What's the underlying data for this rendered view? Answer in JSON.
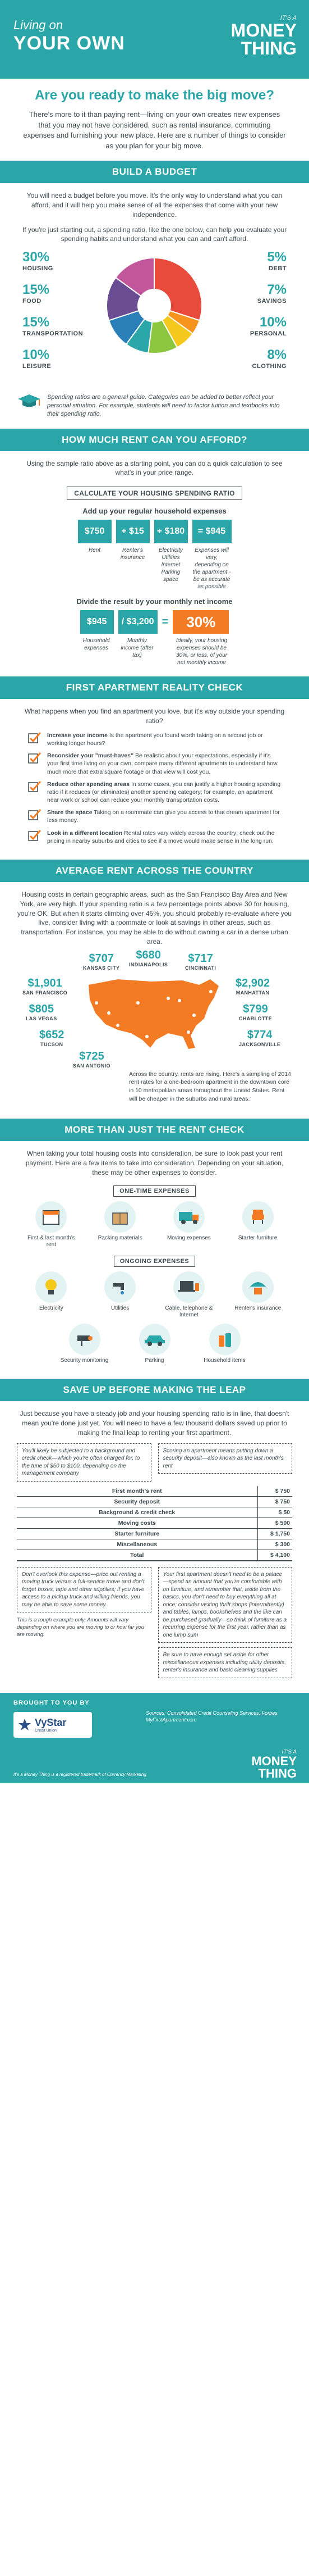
{
  "header": {
    "living_on": "Living on",
    "your_own": "YOUR OWN",
    "tagline": "IT'S A",
    "brand_line1": "MONEY",
    "brand_line2": "THING"
  },
  "intro": {
    "title": "Are you ready to make the big move?",
    "body": "There's more to it than paying rent—living on your own creates new expenses that you may not have considered, such as rental insurance, commuting expenses and furnishing your new place. Here are a number of things to consider as you plan for your big move."
  },
  "budget": {
    "heading": "BUILD A BUDGET",
    "lead1": "You will need a budget before you move. It's the only way to understand what you can afford, and it will help you make sense of all the expenses that come with your new independence.",
    "lead2": "If you're just starting out, a spending ratio, like the one below, can help you evaluate your spending habits and understand what you can and can't afford.",
    "categories": [
      {
        "pct": "30%",
        "name": "HOUSING"
      },
      {
        "pct": "15%",
        "name": "FOOD"
      },
      {
        "pct": "15%",
        "name": "TRANSPORTATION"
      },
      {
        "pct": "10%",
        "name": "LEISURE"
      },
      {
        "pct": "5%",
        "name": "DEBT"
      },
      {
        "pct": "7%",
        "name": "SAVINGS"
      },
      {
        "pct": "10%",
        "name": "PERSONAL"
      },
      {
        "pct": "8%",
        "name": "CLOTHING"
      }
    ],
    "note": "Spending ratios are a general guide. Categories can be added to better reflect your personal situation. For example, students will need to factor tuition and textbooks into their spending ratio."
  },
  "chart_data": {
    "type": "pie",
    "categories": [
      "HOUSING",
      "DEBT",
      "SAVINGS",
      "PERSONAL",
      "CLOTHING",
      "LEISURE",
      "TRANSPORTATION",
      "FOOD"
    ],
    "values": [
      30,
      5,
      7,
      10,
      8,
      10,
      15,
      15
    ],
    "colors": [
      "#e84b3c",
      "#f7941d",
      "#f4c81d",
      "#8cc63f",
      "#2aa6a8",
      "#2a7fb8",
      "#6a4c93",
      "#c2569a"
    ]
  },
  "rent": {
    "heading": "HOW MUCH RENT CAN YOU AFFORD?",
    "lead": "Using the sample ratio above as a starting point, you can do a quick calculation to see what's in your price range.",
    "calc_title": "CALCULATE YOUR HOUSING SPENDING RATIO",
    "add_title": "Add up your regular household expenses",
    "add_values": [
      "$750",
      "+ $15",
      "+ $180",
      "= $945"
    ],
    "add_labels": [
      "Rent",
      "Renter's insurance",
      "Electricity Utilities Internet Parking space",
      "Expenses will vary, depending on the apartment - be as accurate as possible"
    ],
    "div_title": "Divide the result by your monthly net income",
    "div_values": [
      "$945",
      "/ $3,200",
      "=",
      "30%"
    ],
    "div_labels": [
      "Household expenses",
      "Monthly income (after tax)",
      "Ideally, your housing expenses should be 30%, or less, of your net monthly income"
    ]
  },
  "reality": {
    "heading": "FIRST APARTMENT REALITY CHECK",
    "lead": "What happens when you find an apartment you love, but it's way outside your spending ratio?",
    "items": [
      {
        "bold": "Increase your income",
        "text": " Is the apartment you found worth taking on a second job or working longer hours?"
      },
      {
        "bold": "Reconsider your \"must-haves\"",
        "text": " Be realistic about your expectations, especially if it's your first time living on your own; compare many different apartments to understand how much more that extra square footage or that view will cost you."
      },
      {
        "bold": "Reduce other spending areas",
        "text": " In some cases, you can justify a higher housing spending ratio if it reduces (or eliminates) another spending category; for example, an apartment near work or school can reduce your monthly transportation costs."
      },
      {
        "bold": "Share the space",
        "text": " Taking on a roommate can give you access to that dream apartment for less money."
      },
      {
        "bold": "Look in a different location",
        "text": " Rental rates vary widely across the country; check out the pricing in nearby suburbs and cities to see if a move would make sense in the long run."
      }
    ]
  },
  "average": {
    "heading": "AVERAGE RENT ACROSS THE COUNTRY",
    "lead": "Housing costs in certain geographic areas, such as the San Francisco Bay Area and New York, are very high. If your spending ratio is a few percentage points above 30 for housing, you're OK. But when it starts climbing over 45%, you should probably re-evaluate where you live, consider living with a roommate or look at savings in other areas, such as transportation. For instance, you may be able to do without owning a car in a dense urban area.",
    "cities": [
      {
        "price": "$707",
        "name": "KANSAS CITY"
      },
      {
        "price": "$680",
        "name": "INDIANAPOLIS"
      },
      {
        "price": "$717",
        "name": "CINCINNATI"
      },
      {
        "price": "$1,901",
        "name": "SAN FRANCISCO"
      },
      {
        "price": "$2,902",
        "name": "MANHATTAN"
      },
      {
        "price": "$805",
        "name": "LAS VEGAS"
      },
      {
        "price": "$799",
        "name": "CHARLOTTE"
      },
      {
        "price": "$652",
        "name": "TUCSON"
      },
      {
        "price": "$774",
        "name": "JACKSONVILLE"
      },
      {
        "price": "$725",
        "name": "SAN ANTONIO"
      }
    ],
    "map_note": "Across the country, rents are rising. Here's a sampling of 2014 rent rates for a one-bedroom apartment in the downtown core in 10 metropolitan areas throughout the United States. Rent will be cheaper in the suburbs and rural areas."
  },
  "more": {
    "heading": "MORE THAN JUST THE RENT CHECK",
    "lead": "When taking your total housing costs into consideration, be sure to look past your rent payment. Here are a few items to take into consideration. Depending on your situation, these may be other expenses to consider.",
    "one_time_title": "ONE-TIME EXPENSES",
    "one_time": [
      "First & last month's rent",
      "Packing materials",
      "Moving expenses",
      "Starter furniture"
    ],
    "ongoing_title": "ONGOING EXPENSES",
    "ongoing1": [
      "Electricity",
      "Utilities",
      "Cable, telephone & Internet",
      "Renter's insurance"
    ],
    "ongoing2": [
      "Security monitoring",
      "Parking",
      "Household items"
    ]
  },
  "save": {
    "heading": "SAVE UP BEFORE MAKING THE LEAP",
    "lead": "Just because you have a steady job and your housing spending ratio is in line, that doesn't mean you're done just yet. You will need to have a few thousand dollars saved up prior to making the final leap to renting your first apartment.",
    "note1": "You'll likely be subjected to a background and credit check—which you're often charged for, to the tune of $50 to $100, depending on the management company",
    "note2": "Scoring an apartment means putting down a security deposit—also known as the last month's rent",
    "rows": [
      {
        "label": "First month's rent",
        "value": "$ 750"
      },
      {
        "label": "Security deposit",
        "value": "$ 750"
      },
      {
        "label": "Background & credit check",
        "value": "$ 50"
      },
      {
        "label": "Moving costs",
        "value": "$ 500"
      },
      {
        "label": "Starter furniture",
        "value": "$ 1,750"
      },
      {
        "label": "Miscellaneous",
        "value": "$ 300"
      }
    ],
    "total_label": "Total",
    "total_value": "$ 4,100",
    "note3": "Don't overlook this expense—price out renting a moving truck versus a full-service move and don't forget boxes, tape and other supplies; if you have access to a pickup truck and willing friends, you may be able to save some money.",
    "note4": "Your first apartment doesn't need to be a palace—spend an amount that you're comfortable with on furniture, and remember that, aside from the basics, you don't need to buy everything all at once; consider visiting thrift shops (intermittently) and tables, lamps, bookshelves and the like can be purchased gradually—so think of furniture as a recurring expense for the first year, rather than as one lump sum",
    "note5": "This is a rough example only. Amounts will vary depending on where you are moving to or how far you are moving.",
    "note6": "Be sure to have enough set aside for other miscellaneous expenses including utility deposits, renter's insurance and basic cleaning supplies"
  },
  "footer": {
    "brought": "BROUGHT TO YOU BY",
    "logo_name": "VyStar",
    "logo_sub": "Credit Union",
    "sources": "Sources: Consolidated Credit Counseling Services, Forbes, MyFirstApartment.com",
    "tagline": "IT'S A",
    "brand_line1": "MONEY",
    "brand_line2": "THING",
    "trademark": "It's a Money Thing is a registered trademark of Currency Marketing"
  }
}
